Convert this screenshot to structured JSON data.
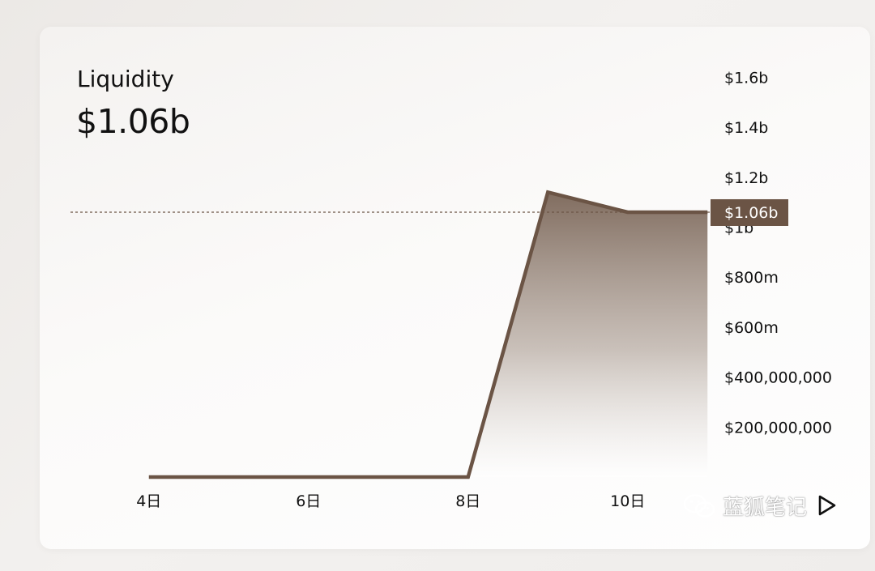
{
  "card": {
    "title": "Liquidity",
    "value": "$1.06b"
  },
  "chart_data": {
    "type": "area",
    "title": "Liquidity",
    "xlabel": "",
    "ylabel": "",
    "x_tick_labels": [
      "4日",
      "6日",
      "8日",
      "10日"
    ],
    "y_tick_labels": [
      "$1.6b",
      "$1.4b",
      "$1.2b",
      "$1b",
      "$800m",
      "$600m",
      "$400,000,000",
      "$200,000,000"
    ],
    "y_tick_values": [
      1600000000,
      1400000000,
      1200000000,
      1000000000,
      800000000,
      600000000,
      400000000,
      200000000
    ],
    "ylim": [
      0,
      1700000000
    ],
    "xlim": [
      3.5,
      12
    ],
    "x": [
      4,
      5,
      6,
      7,
      8,
      9,
      10,
      11
    ],
    "series": [
      {
        "values": [
          0,
          0,
          0,
          0,
          0,
          1140000000,
          1060000000,
          1060000000
        ]
      }
    ],
    "current_value": 1060000000,
    "current_value_label": "$1.06b",
    "grid": false,
    "line_color": "#6b5445",
    "fill_color_top": "#7a6557",
    "fill_color_bottom": "#ffffff"
  },
  "controls": {
    "play_icon": "play-icon"
  },
  "watermark": {
    "text": "蓝狐笔记",
    "icon": "wechat-icon"
  }
}
